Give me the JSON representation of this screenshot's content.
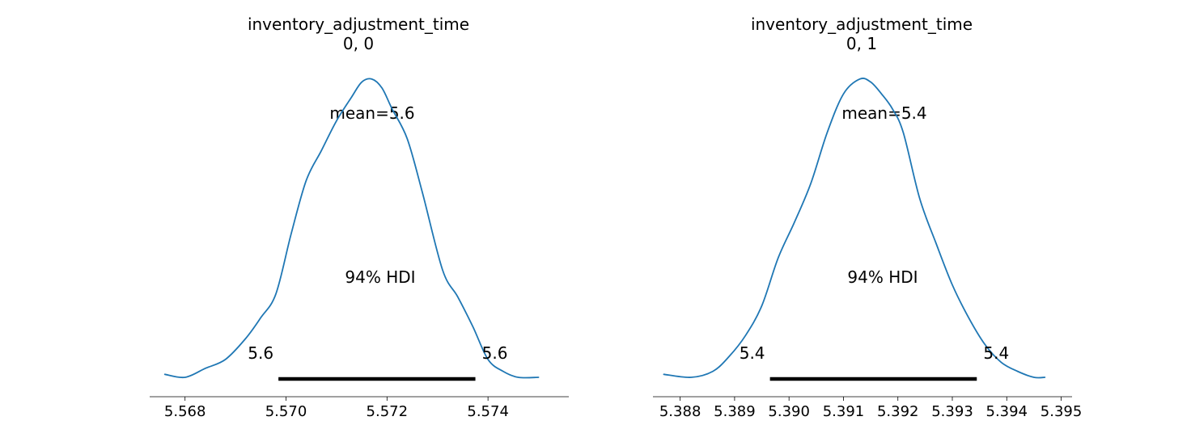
{
  "chart_data": [
    {
      "type": "line",
      "title": "inventory_adjustment_time",
      "subtitle": "0, 0",
      "line_color": "#1f77b4",
      "mean_label": "mean=5.6",
      "hdi_label": "94% HDI",
      "hdi": [
        5.56985,
        5.57375
      ],
      "hdi_low_label": "5.6",
      "hdi_high_label": "5.6",
      "xlim": [
        5.5673,
        5.5756
      ],
      "ylim": [
        -0.065,
        1.07
      ],
      "xticks": [
        5.568,
        5.57,
        5.572,
        5.574
      ],
      "xtick_labels": [
        "5.568",
        "5.570",
        "5.572",
        "5.574"
      ],
      "x": [
        5.5676,
        5.568,
        5.5684,
        5.5688,
        5.5692,
        5.5695,
        5.5698,
        5.5701,
        5.5704,
        5.5707,
        5.571,
        5.5713,
        5.5715,
        5.5717,
        5.5719,
        5.5721,
        5.5724,
        5.5727,
        5.5731,
        5.5734,
        5.5737,
        5.574,
        5.5743,
        5.5746,
        5.575
      ],
      "y": [
        0.01,
        0.0,
        0.03,
        0.06,
        0.13,
        0.2,
        0.28,
        0.48,
        0.66,
        0.76,
        0.86,
        0.94,
        0.99,
        1.0,
        0.97,
        0.9,
        0.8,
        0.62,
        0.36,
        0.27,
        0.17,
        0.06,
        0.02,
        0.0,
        0.0
      ]
    },
    {
      "type": "line",
      "title": "inventory_adjustment_time",
      "subtitle": "0, 1",
      "line_color": "#1f77b4",
      "mean_label": "mean=5.4",
      "hdi_label": "94% HDI",
      "hdi": [
        5.38965,
        5.39345
      ],
      "hdi_low_label": "5.4",
      "hdi_high_label": "5.4",
      "xlim": [
        5.3875,
        5.3952
      ],
      "ylim": [
        -0.065,
        1.07
      ],
      "xticks": [
        5.388,
        5.389,
        5.39,
        5.391,
        5.392,
        5.393,
        5.394,
        5.395
      ],
      "xtick_labels": [
        "5.388",
        "5.389",
        "5.390",
        "5.391",
        "5.392",
        "5.393",
        "5.394",
        "5.395"
      ],
      "x": [
        5.3877,
        5.3882,
        5.3886,
        5.3889,
        5.3892,
        5.3895,
        5.3898,
        5.3901,
        5.3904,
        5.3907,
        5.391,
        5.3913,
        5.3915,
        5.3917,
        5.3919,
        5.3921,
        5.3924,
        5.3927,
        5.393,
        5.3933,
        5.3936,
        5.3939,
        5.3942,
        5.3945,
        5.3947
      ],
      "y": [
        0.01,
        0.0,
        0.02,
        0.07,
        0.14,
        0.24,
        0.4,
        0.52,
        0.65,
        0.82,
        0.95,
        1.0,
        0.99,
        0.95,
        0.9,
        0.82,
        0.6,
        0.45,
        0.31,
        0.2,
        0.11,
        0.05,
        0.02,
        0.0,
        0.0
      ]
    }
  ]
}
